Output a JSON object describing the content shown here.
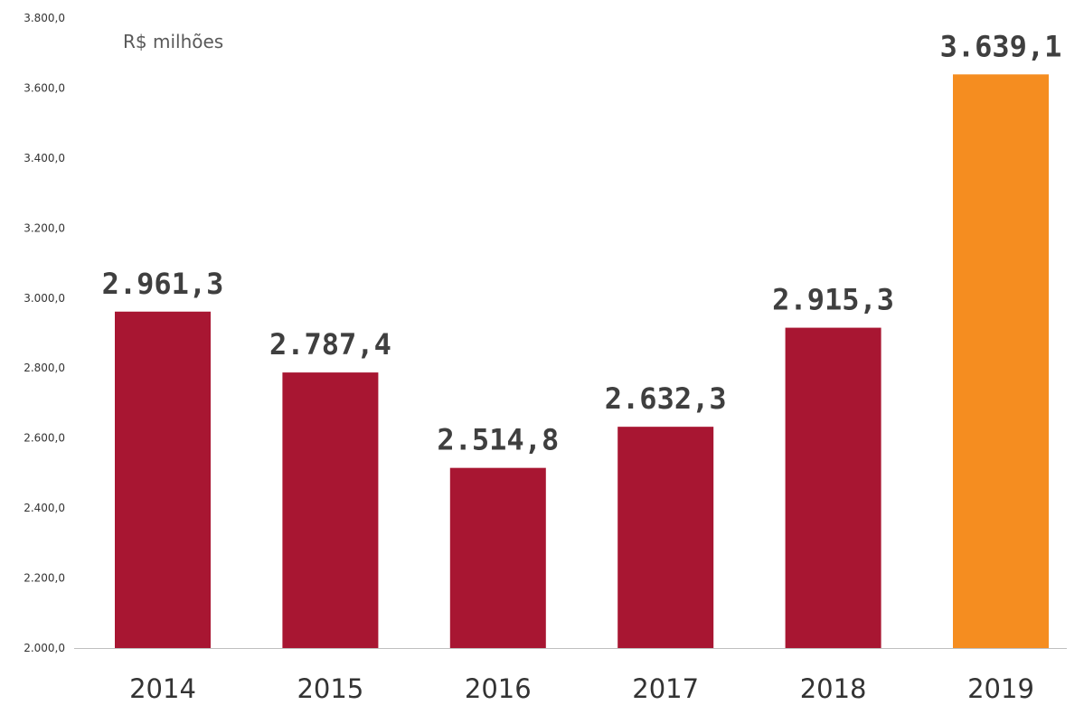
{
  "chart_data": {
    "type": "bar",
    "unit_label": "R$ milhões",
    "categories": [
      "2014",
      "2015",
      "2016",
      "2017",
      "2018",
      "2019"
    ],
    "values": [
      2961.3,
      2787.4,
      2514.8,
      2632.3,
      2915.3,
      3639.1
    ],
    "data_labels": [
      "2.961,3",
      "2.787,4",
      "2.514,8",
      "2.632,3",
      "2.915,3",
      "3.639,1"
    ],
    "bar_colors": [
      "#a81632",
      "#a81632",
      "#a81632",
      "#a81632",
      "#a81632",
      "#f58d20"
    ],
    "ylim": [
      2000,
      3800
    ],
    "yticks": [
      2000,
      2200,
      2400,
      2600,
      2800,
      3000,
      3200,
      3400,
      3600,
      3800
    ],
    "ytick_labels": [
      "2.000,0",
      "2.200,0",
      "2.400,0",
      "2.600,0",
      "2.800,0",
      "3.000,0",
      "3.200,0",
      "3.400,0",
      "3.600,0",
      "3.800,0"
    ],
    "grid": false,
    "legend": "none"
  }
}
